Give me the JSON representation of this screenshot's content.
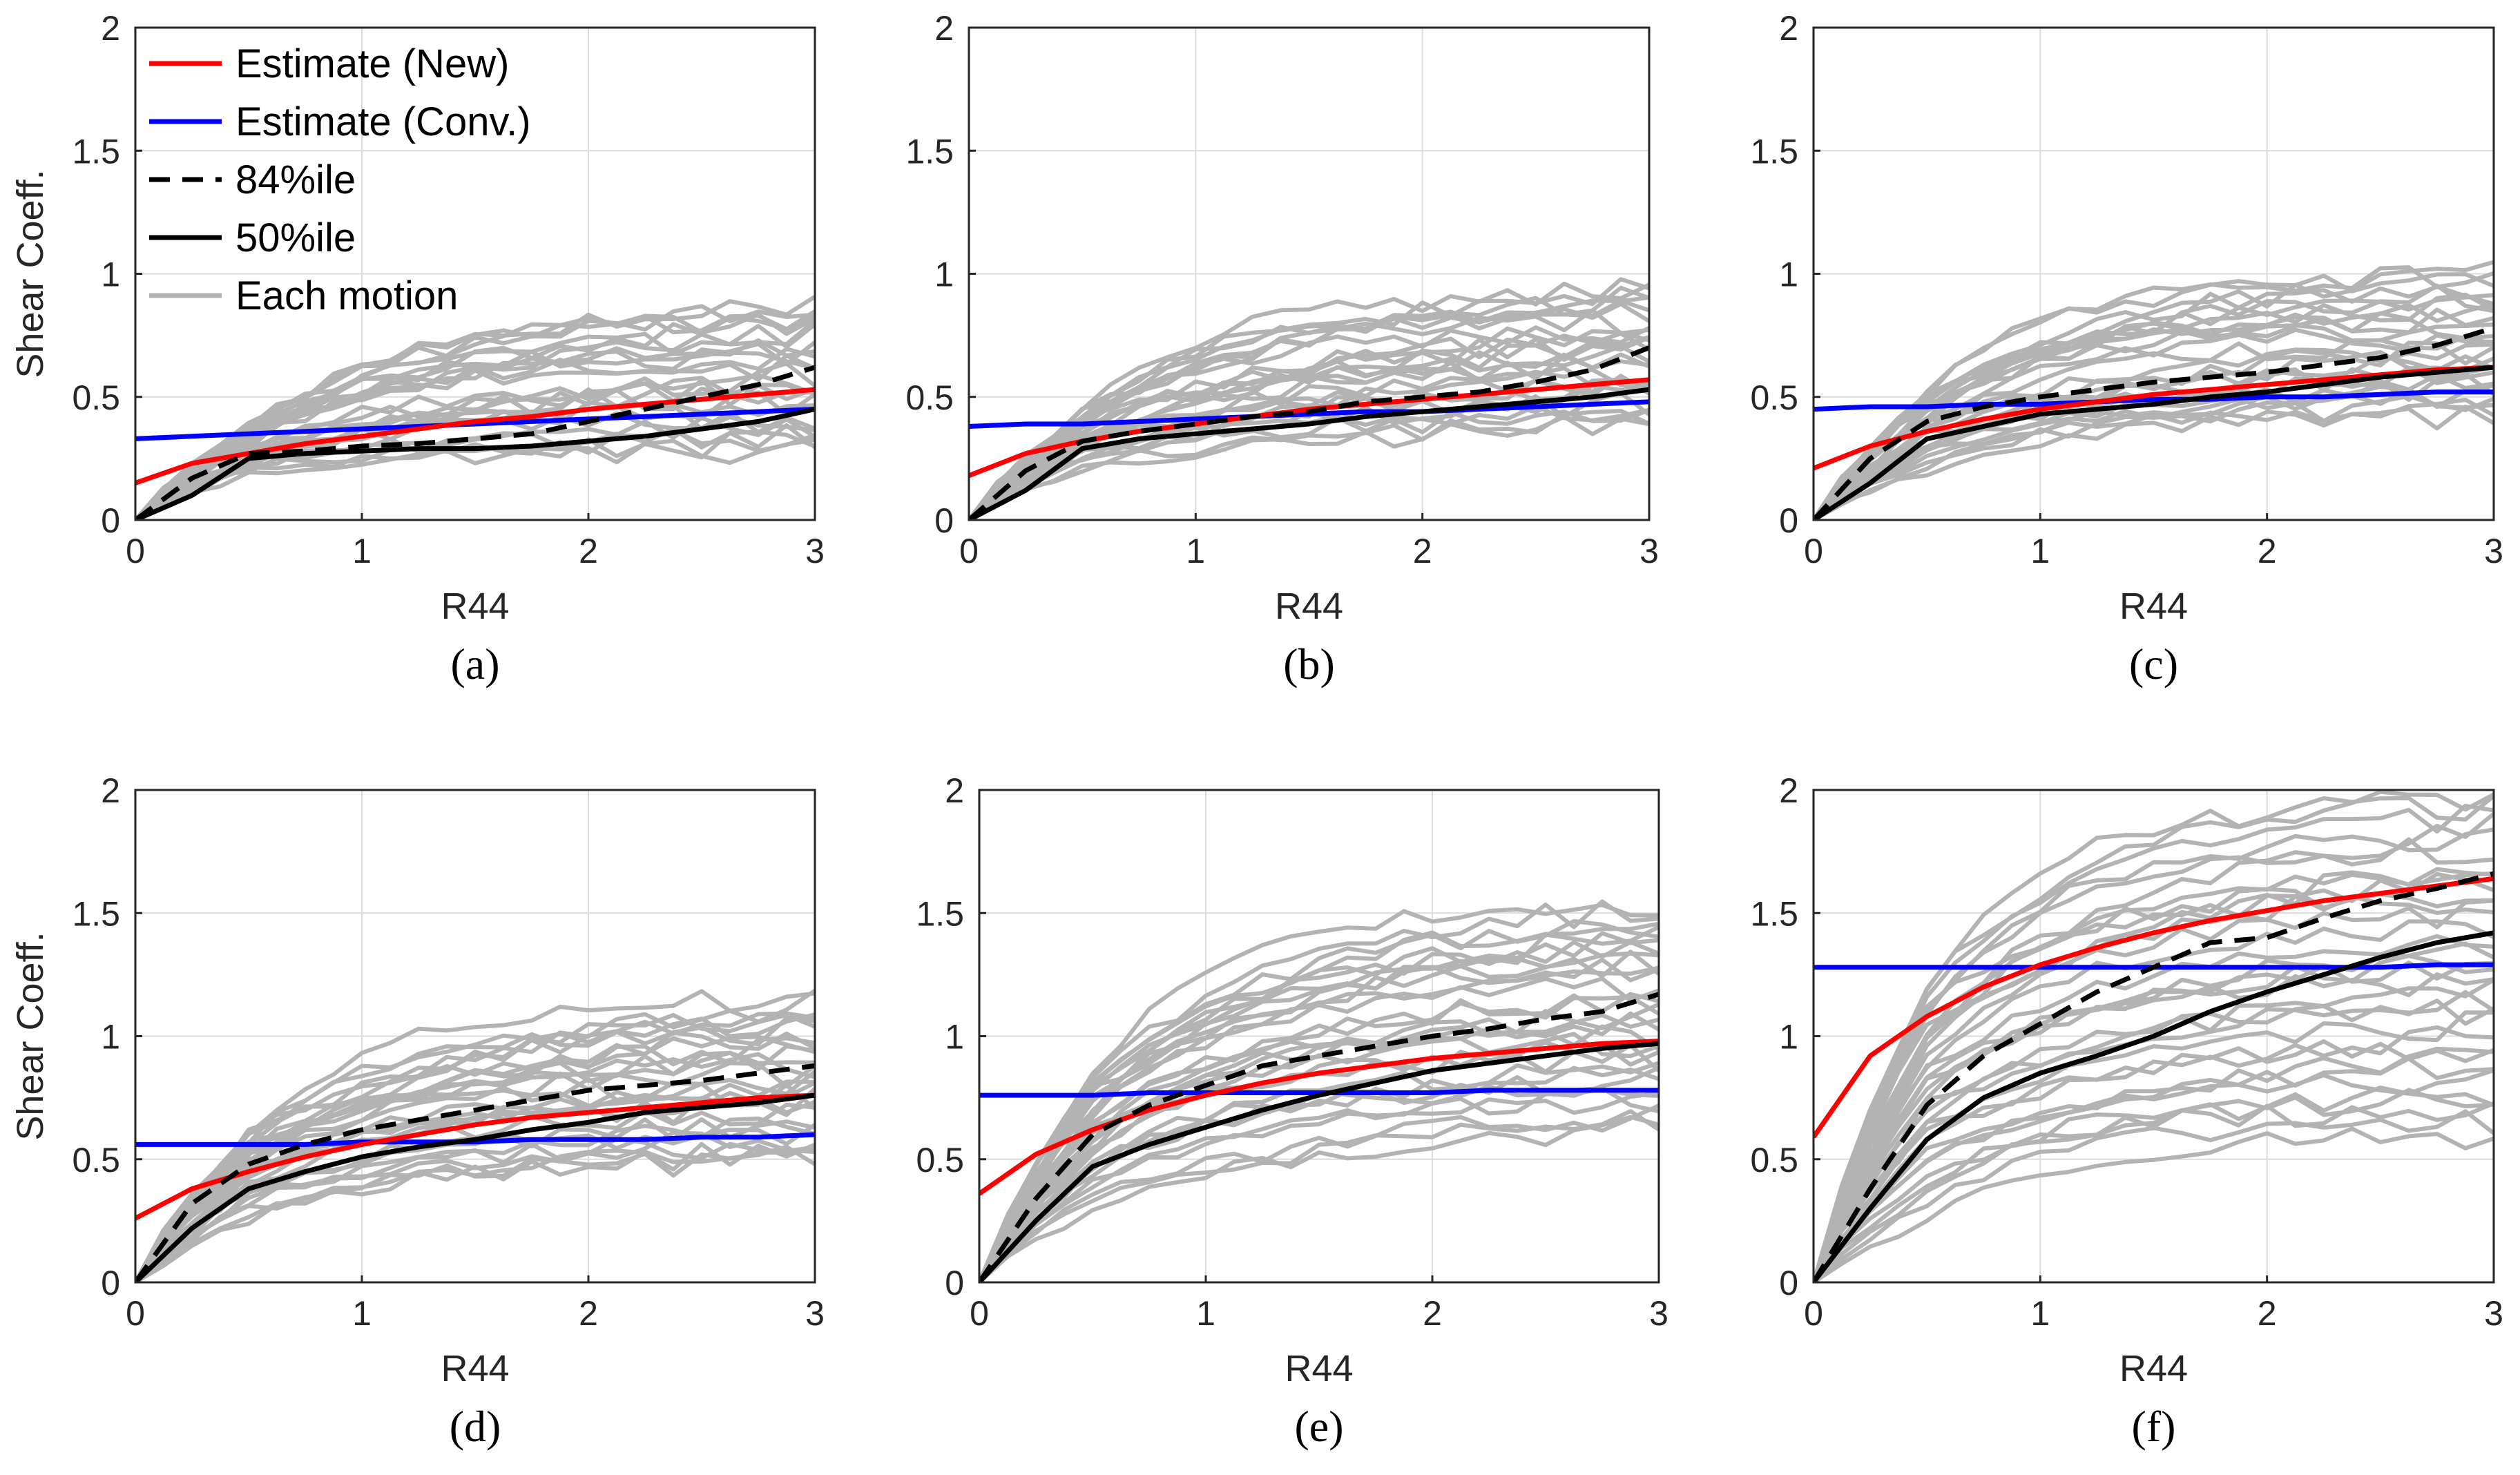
{
  "colors": {
    "new": "#ff0000",
    "conv": "#0000ff",
    "p84": "#000000",
    "p50": "#000000",
    "each": "#b3b3b3"
  },
  "legend": [
    {
      "key": "new",
      "label": "Estimate (New)"
    },
    {
      "key": "conv",
      "label": "Estimate (Conv.)"
    },
    {
      "key": "p84",
      "label": "84%ile"
    },
    {
      "key": "p50",
      "label": "50%ile"
    },
    {
      "key": "each",
      "label": "Each motion"
    }
  ],
  "chart_data": [
    {
      "type": "line",
      "panel": "(a)",
      "caption": "(a)",
      "xlabel": "R44",
      "ylabel": "Shear Coeff.",
      "xlim": [
        0,
        3
      ],
      "ylim": [
        0,
        2
      ],
      "xticks": [
        0,
        1,
        2,
        3
      ],
      "yticks": [
        0,
        0.5,
        1,
        1.5,
        2
      ],
      "grid": true,
      "legend_position": "top-left",
      "x": [
        0,
        0.25,
        0.5,
        0.75,
        1,
        1.25,
        1.5,
        1.75,
        2,
        2.25,
        2.5,
        2.75,
        3
      ],
      "series": [
        {
          "name": "Estimate (New)",
          "key": "new",
          "values": [
            0.15,
            0.23,
            0.27,
            0.31,
            0.34,
            0.37,
            0.4,
            0.42,
            0.45,
            0.47,
            0.49,
            0.51,
            0.53
          ]
        },
        {
          "name": "Estimate (Conv.)",
          "key": "conv",
          "values": [
            0.33,
            0.34,
            0.35,
            0.36,
            0.37,
            0.38,
            0.39,
            0.4,
            0.41,
            0.42,
            0.43,
            0.44,
            0.45
          ]
        },
        {
          "name": "84%ile",
          "key": "p84",
          "values": [
            0,
            0.17,
            0.27,
            0.28,
            0.3,
            0.31,
            0.33,
            0.35,
            0.4,
            0.45,
            0.5,
            0.55,
            0.62
          ]
        },
        {
          "name": "50%ile",
          "key": "p50",
          "values": [
            0,
            0.1,
            0.25,
            0.27,
            0.28,
            0.29,
            0.29,
            0.3,
            0.32,
            0.34,
            0.37,
            0.4,
            0.45
          ]
        }
      ],
      "each_motion": {
        "count": 26,
        "start": [
          0.18,
          0.38
        ],
        "end": [
          0.28,
          0.88
        ]
      }
    },
    {
      "type": "line",
      "panel": "(b)",
      "caption": "(b)",
      "xlabel": "R44",
      "ylabel": "",
      "xlim": [
        0,
        3
      ],
      "ylim": [
        0,
        2
      ],
      "xticks": [
        0,
        1,
        2,
        3
      ],
      "yticks": [
        0,
        0.5,
        1,
        1.5,
        2
      ],
      "grid": true,
      "x": [
        0,
        0.25,
        0.5,
        0.75,
        1,
        1.25,
        1.5,
        1.75,
        2,
        2.25,
        2.5,
        2.75,
        3
      ],
      "series": [
        {
          "name": "Estimate (New)",
          "key": "new",
          "values": [
            0.18,
            0.27,
            0.32,
            0.36,
            0.39,
            0.42,
            0.45,
            0.47,
            0.49,
            0.51,
            0.53,
            0.55,
            0.57
          ]
        },
        {
          "name": "Estimate (Conv.)",
          "key": "conv",
          "values": [
            0.38,
            0.39,
            0.39,
            0.4,
            0.41,
            0.42,
            0.43,
            0.44,
            0.44,
            0.45,
            0.46,
            0.47,
            0.48
          ]
        },
        {
          "name": "84%ile",
          "key": "p84",
          "values": [
            0,
            0.2,
            0.32,
            0.36,
            0.39,
            0.42,
            0.44,
            0.48,
            0.5,
            0.52,
            0.56,
            0.61,
            0.7
          ]
        },
        {
          "name": "50%ile",
          "key": "p50",
          "values": [
            0,
            0.12,
            0.29,
            0.33,
            0.35,
            0.37,
            0.39,
            0.42,
            0.44,
            0.46,
            0.48,
            0.5,
            0.53
          ]
        }
      ],
      "each_motion": {
        "count": 26,
        "start": [
          0.2,
          0.45
        ],
        "end": [
          0.38,
          0.94
        ]
      }
    },
    {
      "type": "line",
      "panel": "(c)",
      "caption": "(c)",
      "xlabel": "R44",
      "ylabel": "",
      "xlim": [
        0,
        3
      ],
      "ylim": [
        0,
        2
      ],
      "xticks": [
        0,
        1,
        2,
        3
      ],
      "yticks": [
        0,
        0.5,
        1,
        1.5,
        2
      ],
      "grid": true,
      "x": [
        0,
        0.25,
        0.5,
        0.75,
        1,
        1.25,
        1.5,
        1.75,
        2,
        2.25,
        2.5,
        2.75,
        3
      ],
      "series": [
        {
          "name": "Estimate (New)",
          "key": "new",
          "values": [
            0.21,
            0.3,
            0.36,
            0.41,
            0.45,
            0.48,
            0.51,
            0.53,
            0.55,
            0.57,
            0.59,
            0.61,
            0.62
          ]
        },
        {
          "name": "Estimate (Conv.)",
          "key": "conv",
          "values": [
            0.45,
            0.46,
            0.46,
            0.47,
            0.47,
            0.48,
            0.49,
            0.49,
            0.5,
            0.5,
            0.51,
            0.52,
            0.52
          ]
        },
        {
          "name": "84%ile",
          "key": "p84",
          "values": [
            0,
            0.25,
            0.4,
            0.46,
            0.5,
            0.53,
            0.56,
            0.58,
            0.6,
            0.63,
            0.66,
            0.71,
            0.78
          ]
        },
        {
          "name": "50%ile",
          "key": "p50",
          "values": [
            0,
            0.15,
            0.33,
            0.38,
            0.43,
            0.45,
            0.47,
            0.5,
            0.52,
            0.55,
            0.58,
            0.6,
            0.62
          ]
        }
      ],
      "each_motion": {
        "count": 26,
        "start": [
          0.2,
          0.52
        ],
        "end": [
          0.42,
          1.0
        ]
      }
    },
    {
      "type": "line",
      "panel": "(d)",
      "caption": "(d)",
      "xlabel": "R44",
      "ylabel": "Shear Coeff.",
      "xlim": [
        0,
        3
      ],
      "ylim": [
        0,
        2
      ],
      "xticks": [
        0,
        1,
        2,
        3
      ],
      "yticks": [
        0,
        0.5,
        1,
        1.5,
        2
      ],
      "grid": true,
      "x": [
        0,
        0.25,
        0.5,
        0.75,
        1,
        1.25,
        1.5,
        1.75,
        2,
        2.25,
        2.5,
        2.75,
        3
      ],
      "series": [
        {
          "name": "Estimate (New)",
          "key": "new",
          "values": [
            0.26,
            0.38,
            0.45,
            0.51,
            0.56,
            0.6,
            0.64,
            0.67,
            0.69,
            0.71,
            0.73,
            0.75,
            0.76
          ]
        },
        {
          "name": "Estimate (Conv.)",
          "key": "conv",
          "values": [
            0.56,
            0.56,
            0.56,
            0.56,
            0.57,
            0.57,
            0.57,
            0.58,
            0.58,
            0.58,
            0.59,
            0.59,
            0.6
          ]
        },
        {
          "name": "84%ile",
          "key": "p84",
          "values": [
            0,
            0.32,
            0.48,
            0.56,
            0.62,
            0.66,
            0.7,
            0.74,
            0.78,
            0.8,
            0.82,
            0.85,
            0.88
          ]
        },
        {
          "name": "50%ile",
          "key": "p50",
          "values": [
            0,
            0.22,
            0.38,
            0.45,
            0.51,
            0.55,
            0.58,
            0.62,
            0.65,
            0.69,
            0.71,
            0.73,
            0.76
          ]
        }
      ],
      "each_motion": {
        "count": 28,
        "start": [
          0.25,
          0.62
        ],
        "end": [
          0.48,
          1.15
        ]
      }
    },
    {
      "type": "line",
      "panel": "(e)",
      "caption": "(e)",
      "xlabel": "R44",
      "ylabel": "",
      "xlim": [
        0,
        3
      ],
      "ylim": [
        0,
        2
      ],
      "xticks": [
        0,
        1,
        2,
        3
      ],
      "yticks": [
        0,
        0.5,
        1,
        1.5,
        2
      ],
      "grid": true,
      "x": [
        0,
        0.25,
        0.5,
        0.75,
        1,
        1.25,
        1.5,
        1.75,
        2,
        2.25,
        2.5,
        2.75,
        3
      ],
      "series": [
        {
          "name": "Estimate (New)",
          "key": "new",
          "values": [
            0.36,
            0.52,
            0.62,
            0.7,
            0.76,
            0.81,
            0.85,
            0.88,
            0.91,
            0.93,
            0.95,
            0.97,
            0.98
          ]
        },
        {
          "name": "Estimate (Conv.)",
          "key": "conv",
          "values": [
            0.76,
            0.76,
            0.76,
            0.77,
            0.77,
            0.77,
            0.77,
            0.77,
            0.77,
            0.78,
            0.78,
            0.78,
            0.78
          ]
        },
        {
          "name": "84%ile",
          "key": "p84",
          "values": [
            0,
            0.34,
            0.6,
            0.72,
            0.8,
            0.88,
            0.92,
            0.96,
            1.0,
            1.03,
            1.07,
            1.1,
            1.17
          ]
        },
        {
          "name": "50%ile",
          "key": "p50",
          "values": [
            0,
            0.25,
            0.47,
            0.56,
            0.63,
            0.7,
            0.76,
            0.81,
            0.86,
            0.89,
            0.92,
            0.95,
            0.97
          ]
        }
      ],
      "each_motion": {
        "count": 30,
        "start": [
          0.3,
          0.85
        ],
        "end": [
          0.62,
          1.55
        ]
      }
    },
    {
      "type": "line",
      "panel": "(f)",
      "caption": "(f)",
      "xlabel": "R44",
      "ylabel": "",
      "xlim": [
        0,
        3
      ],
      "ylim": [
        0,
        2
      ],
      "xticks": [
        0,
        1,
        2,
        3
      ],
      "yticks": [
        0,
        0.5,
        1,
        1.5,
        2
      ],
      "grid": true,
      "x": [
        0,
        0.25,
        0.5,
        0.75,
        1,
        1.25,
        1.5,
        1.75,
        2,
        2.25,
        2.5,
        2.75,
        3
      ],
      "series": [
        {
          "name": "Estimate (New)",
          "key": "new",
          "values": [
            0.59,
            0.92,
            1.08,
            1.2,
            1.29,
            1.36,
            1.42,
            1.47,
            1.51,
            1.55,
            1.58,
            1.61,
            1.64
          ]
        },
        {
          "name": "Estimate (Conv.)",
          "key": "conv",
          "values": [
            1.28,
            1.28,
            1.28,
            1.28,
            1.28,
            1.28,
            1.28,
            1.28,
            1.28,
            1.28,
            1.28,
            1.29,
            1.29
          ]
        },
        {
          "name": "84%ile",
          "key": "p84",
          "values": [
            0,
            0.38,
            0.72,
            0.92,
            1.05,
            1.18,
            1.28,
            1.38,
            1.4,
            1.48,
            1.55,
            1.6,
            1.66
          ]
        },
        {
          "name": "50%ile",
          "key": "p50",
          "values": [
            0,
            0.3,
            0.58,
            0.75,
            0.85,
            0.92,
            1.0,
            1.1,
            1.18,
            1.25,
            1.32,
            1.38,
            1.42
          ]
        }
      ],
      "each_motion": {
        "count": 32,
        "start": [
          0.25,
          1.2
        ],
        "end": [
          0.6,
          1.98
        ]
      }
    }
  ]
}
